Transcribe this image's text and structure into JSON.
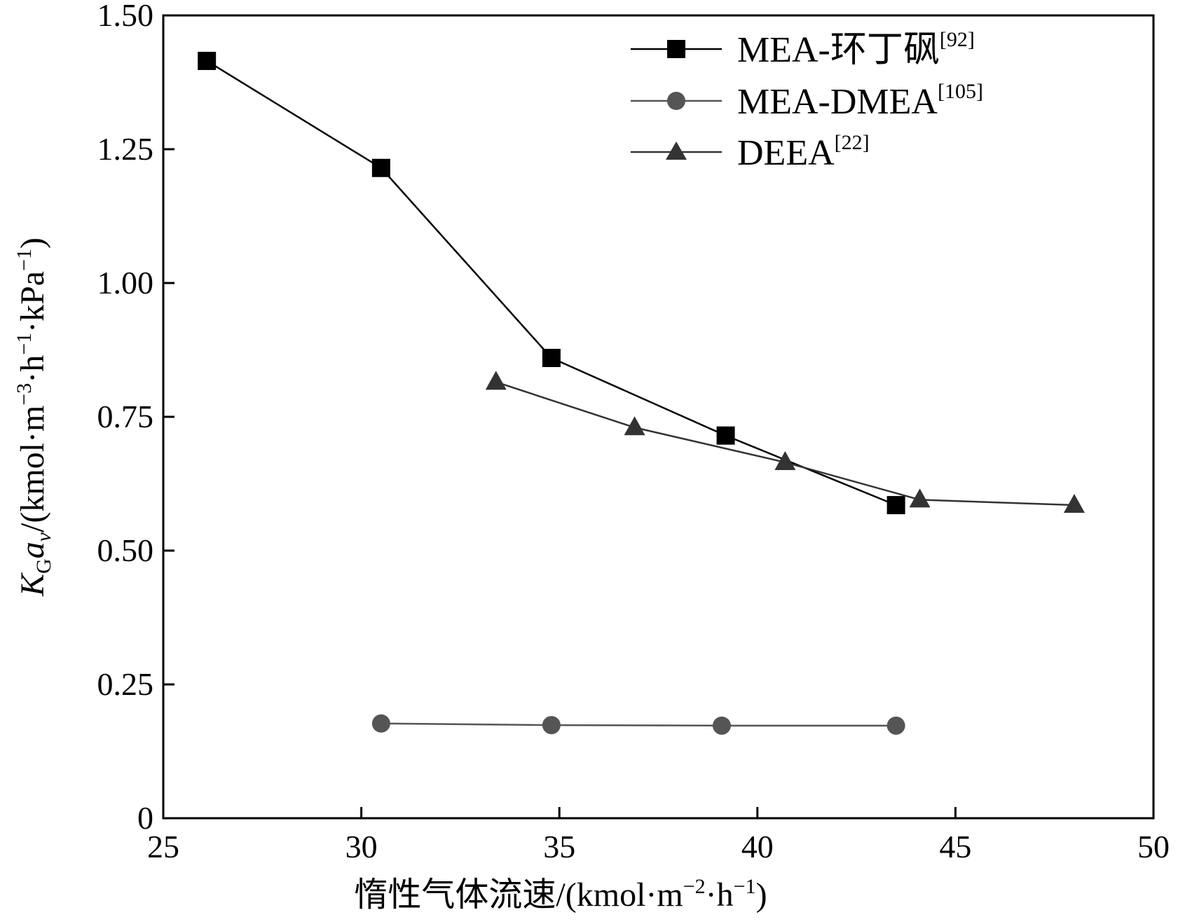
{
  "chart_data": {
    "type": "line",
    "xlabel": {
      "main": "惰性气体流速/(kmol·m",
      "sup1": "−2",
      "mid": "·h",
      "sup2": "−1",
      "end": ")"
    },
    "ylabel": {
      "k": "K",
      "ksub": "G",
      "a": "a",
      "asub": "v",
      "unit_main": "/(kmol·m",
      "sup1": "−3",
      "mid1": "·h",
      "sup2": "−1",
      "mid2": "·kPa",
      "sup3": "−1",
      "end": ")"
    },
    "xlim": [
      25,
      50
    ],
    "ylim": [
      0,
      1.5
    ],
    "xticks": [
      25,
      30,
      35,
      40,
      45,
      50
    ],
    "xtick_labels": [
      "25",
      "30",
      "35",
      "40",
      "45",
      "50"
    ],
    "yticks": [
      0,
      0.25,
      0.5,
      0.75,
      1.0,
      1.25,
      1.5
    ],
    "ytick_labels": [
      "0",
      "0.25",
      "0.50",
      "0.75",
      "1.00",
      "1.25",
      "1.50"
    ],
    "grid": false,
    "legend_position": "top-right",
    "series": [
      {
        "name": "MEA-环丁砜",
        "ref": "[92]",
        "marker": "square",
        "color": "#000000",
        "x": [
          26.1,
          30.5,
          34.8,
          39.2,
          43.5
        ],
        "y": [
          1.415,
          1.215,
          0.86,
          0.715,
          0.585
        ]
      },
      {
        "name": "MEA-DMEA",
        "ref": "[105]",
        "marker": "circle",
        "color": "#555555",
        "x": [
          30.5,
          34.8,
          39.1,
          43.5
        ],
        "y": [
          0.177,
          0.174,
          0.173,
          0.173
        ]
      },
      {
        "name": "DEEA",
        "ref": "[22]",
        "marker": "triangle",
        "color": "#333333",
        "x": [
          33.4,
          36.9,
          40.7,
          44.1,
          48.0
        ],
        "y": [
          0.815,
          0.73,
          0.665,
          0.595,
          0.585
        ]
      }
    ]
  }
}
